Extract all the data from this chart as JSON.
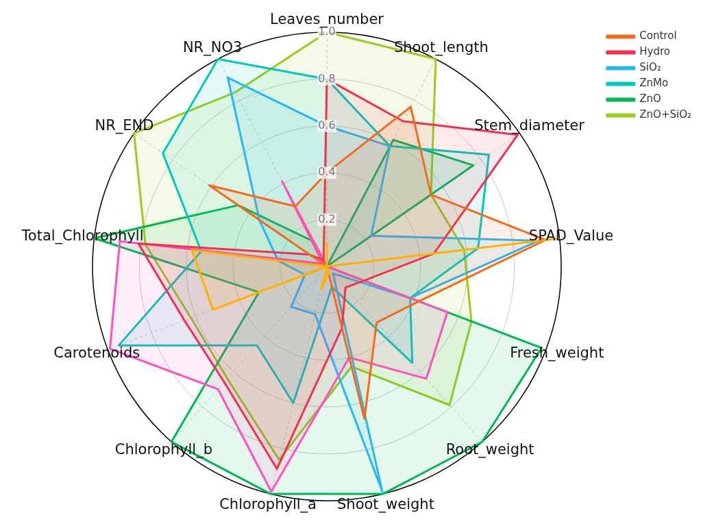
{
  "chart_data": {
    "type": "radar",
    "categories": [
      "Leaves_number",
      "Shoot_length",
      "Stem_diameter",
      "SPAD_Value",
      "Fresh_weight",
      "Root_weight",
      "Shoot_weight",
      "Chlorophyll_a",
      "Chlorophyll_b",
      "Carotenoids",
      "Total_Chlorophyll",
      "NR_END",
      "NR_NO3"
    ],
    "series": [
      {
        "color": "#ffb000",
        "values": [
          0.1,
          0,
          0,
          0.99,
          0,
          0,
          0.03,
          0.1,
          0,
          0.52,
          0.58,
          0,
          0
        ]
      },
      {
        "name": "Control",
        "color": "#f26b1d",
        "values": [
          0.4,
          0.77,
          0.54,
          0.94,
          0.42,
          0.32,
          0.67,
          0,
          0,
          0.09,
          0,
          0.61,
          0.29
        ]
      },
      {
        "name": "Hydro",
        "color": "#f0304f",
        "values": [
          0.8,
          0.7,
          0.99,
          0.46,
          0.17,
          0.12,
          0.27,
          0.89,
          0.66,
          0.65,
          0.81,
          0.09,
          0.03
        ]
      },
      {
        "color": "#ff4fc0",
        "values": [
          0,
          0,
          0,
          0,
          0.55,
          0.64,
          0.4,
          0.99,
          0.7,
          0.99,
          0.89,
          0.02,
          0.41
        ]
      },
      {
        "name": "SiO₂",
        "color": "#27b7f5",
        "values": [
          0.6,
          0.58,
          0.23,
          0.91,
          0.38,
          0.04,
          0.99,
          0.21,
          0.23,
          0.1,
          0.21,
          0.35,
          0.91
        ]
      },
      {
        "name": "ZnMo",
        "color": "#00c8c0",
        "values": [
          0.8,
          0.58,
          0.84,
          0.65,
          0.38,
          0.55,
          0.09,
          0.6,
          0.45,
          0.95,
          0.54,
          0.85,
          1.0
        ]
      },
      {
        "name": "ZnO",
        "color": "#00b850",
        "values": [
          0,
          0.61,
          0.76,
          0,
          0.98,
          1.0,
          1.0,
          1.0,
          1.0,
          0.31,
          1.0,
          0.46,
          0.12
        ]
      },
      {
        "name": "ZnO+SiO₂",
        "color": "#9acd1a",
        "values": [
          1.0,
          1.0,
          0.54,
          0.59,
          0.66,
          0.79,
          0.44,
          0.85,
          0.64,
          0.62,
          0.78,
          1.0,
          0.84
        ]
      }
    ],
    "ylim": [
      0,
      1
    ],
    "yticks": [
      {
        "value": 0.2,
        "label": "0.2"
      },
      {
        "value": 0.4,
        "label": "0.4"
      },
      {
        "value": 0.6,
        "label": "0.6"
      },
      {
        "value": 0.8,
        "label": "0.8"
      },
      {
        "value": 1.0,
        "label": "1.0"
      }
    ],
    "grid": true,
    "legend": "top right",
    "marker": "none"
  }
}
